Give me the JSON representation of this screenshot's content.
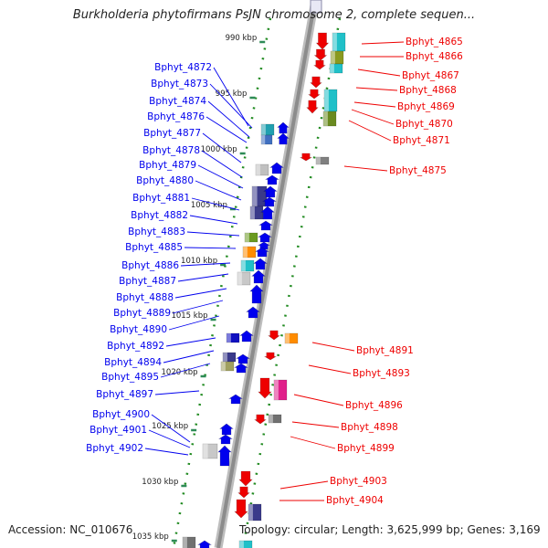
{
  "map": {
    "title": "Burkholderia phytofirmans PsJN chromosome 2, complete sequen...",
    "accession": "Accession: NC_010676",
    "topology": "Topology: circular; Length: 3,625,999 bp; Genes: 3,169"
  },
  "colors": {
    "forward_strand": "#0000ee",
    "reverse_strand": "#ee0000",
    "backbone": "#999999",
    "tick": "#2e8b57",
    "dots": "#228b22"
  },
  "scale": {
    "unit": "kbp",
    "ticks": [
      {
        "label": "990 kbp"
      },
      {
        "label": "995 kbp"
      },
      {
        "label": "1000 kbp"
      },
      {
        "label": "1005 kbp"
      },
      {
        "label": "1010 kbp"
      },
      {
        "label": "1015 kbp"
      },
      {
        "label": "1020 kbp"
      },
      {
        "label": "1025 kbp"
      },
      {
        "label": "1030 kbp"
      },
      {
        "label": "1035 kbp"
      }
    ]
  },
  "forward_genes": [
    {
      "name": "Bphyt_4872"
    },
    {
      "name": "Bphyt_4873"
    },
    {
      "name": "Bphyt_4874"
    },
    {
      "name": "Bphyt_4876"
    },
    {
      "name": "Bphyt_4877"
    },
    {
      "name": "Bphyt_4878"
    },
    {
      "name": "Bphyt_4879"
    },
    {
      "name": "Bphyt_4880"
    },
    {
      "name": "Bphyt_4881"
    },
    {
      "name": "Bphyt_4882"
    },
    {
      "name": "Bphyt_4883"
    },
    {
      "name": "Bphyt_4885"
    },
    {
      "name": "Bphyt_4886"
    },
    {
      "name": "Bphyt_4887"
    },
    {
      "name": "Bphyt_4888"
    },
    {
      "name": "Bphyt_4889"
    },
    {
      "name": "Bphyt_4890"
    },
    {
      "name": "Bphyt_4892"
    },
    {
      "name": "Bphyt_4894"
    },
    {
      "name": "Bphyt_4895"
    },
    {
      "name": "Bphyt_4897"
    },
    {
      "name": "Bphyt_4900"
    },
    {
      "name": "Bphyt_4901"
    },
    {
      "name": "Bphyt_4902"
    }
  ],
  "reverse_genes": [
    {
      "name": "Bphyt_4865"
    },
    {
      "name": "Bphyt_4866"
    },
    {
      "name": "Bphyt_4867"
    },
    {
      "name": "Bphyt_4868"
    },
    {
      "name": "Bphyt_4869"
    },
    {
      "name": "Bphyt_4870"
    },
    {
      "name": "Bphyt_4871"
    },
    {
      "name": "Bphyt_4875"
    },
    {
      "name": "Bphyt_4891"
    },
    {
      "name": "Bphyt_4893"
    },
    {
      "name": "Bphyt_4896"
    },
    {
      "name": "Bphyt_4898"
    },
    {
      "name": "Bphyt_4899"
    },
    {
      "name": "Bphyt_4903"
    },
    {
      "name": "Bphyt_4904"
    }
  ]
}
